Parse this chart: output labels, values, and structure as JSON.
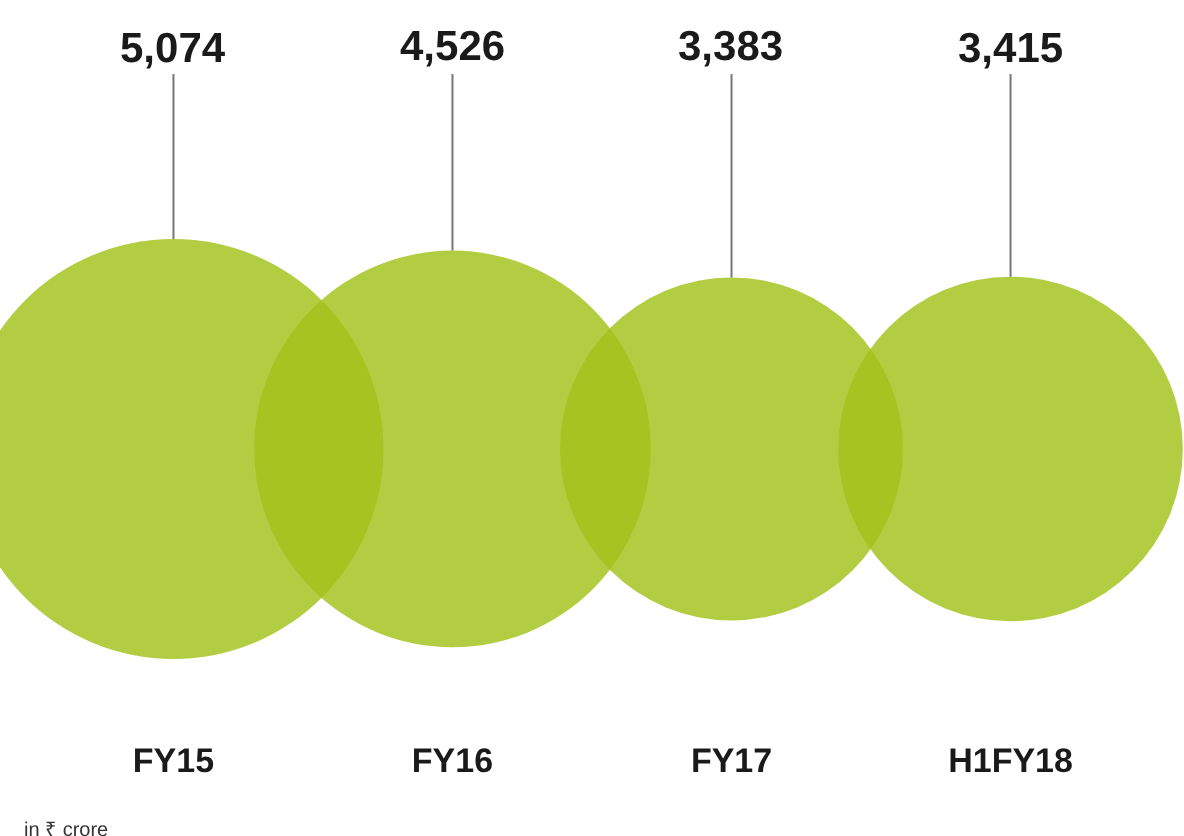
{
  "chart_data": {
    "type": "other",
    "categories": [
      "FY15",
      "FY16",
      "FY17",
      "H1FY18"
    ],
    "values": [
      5074,
      4526,
      3383,
      3415
    ],
    "value_labels": [
      "5,074",
      "4,526",
      "3,383",
      "3,415"
    ],
    "color": "#a2c21a",
    "annotations": [
      "in ₹ crore"
    ]
  }
}
